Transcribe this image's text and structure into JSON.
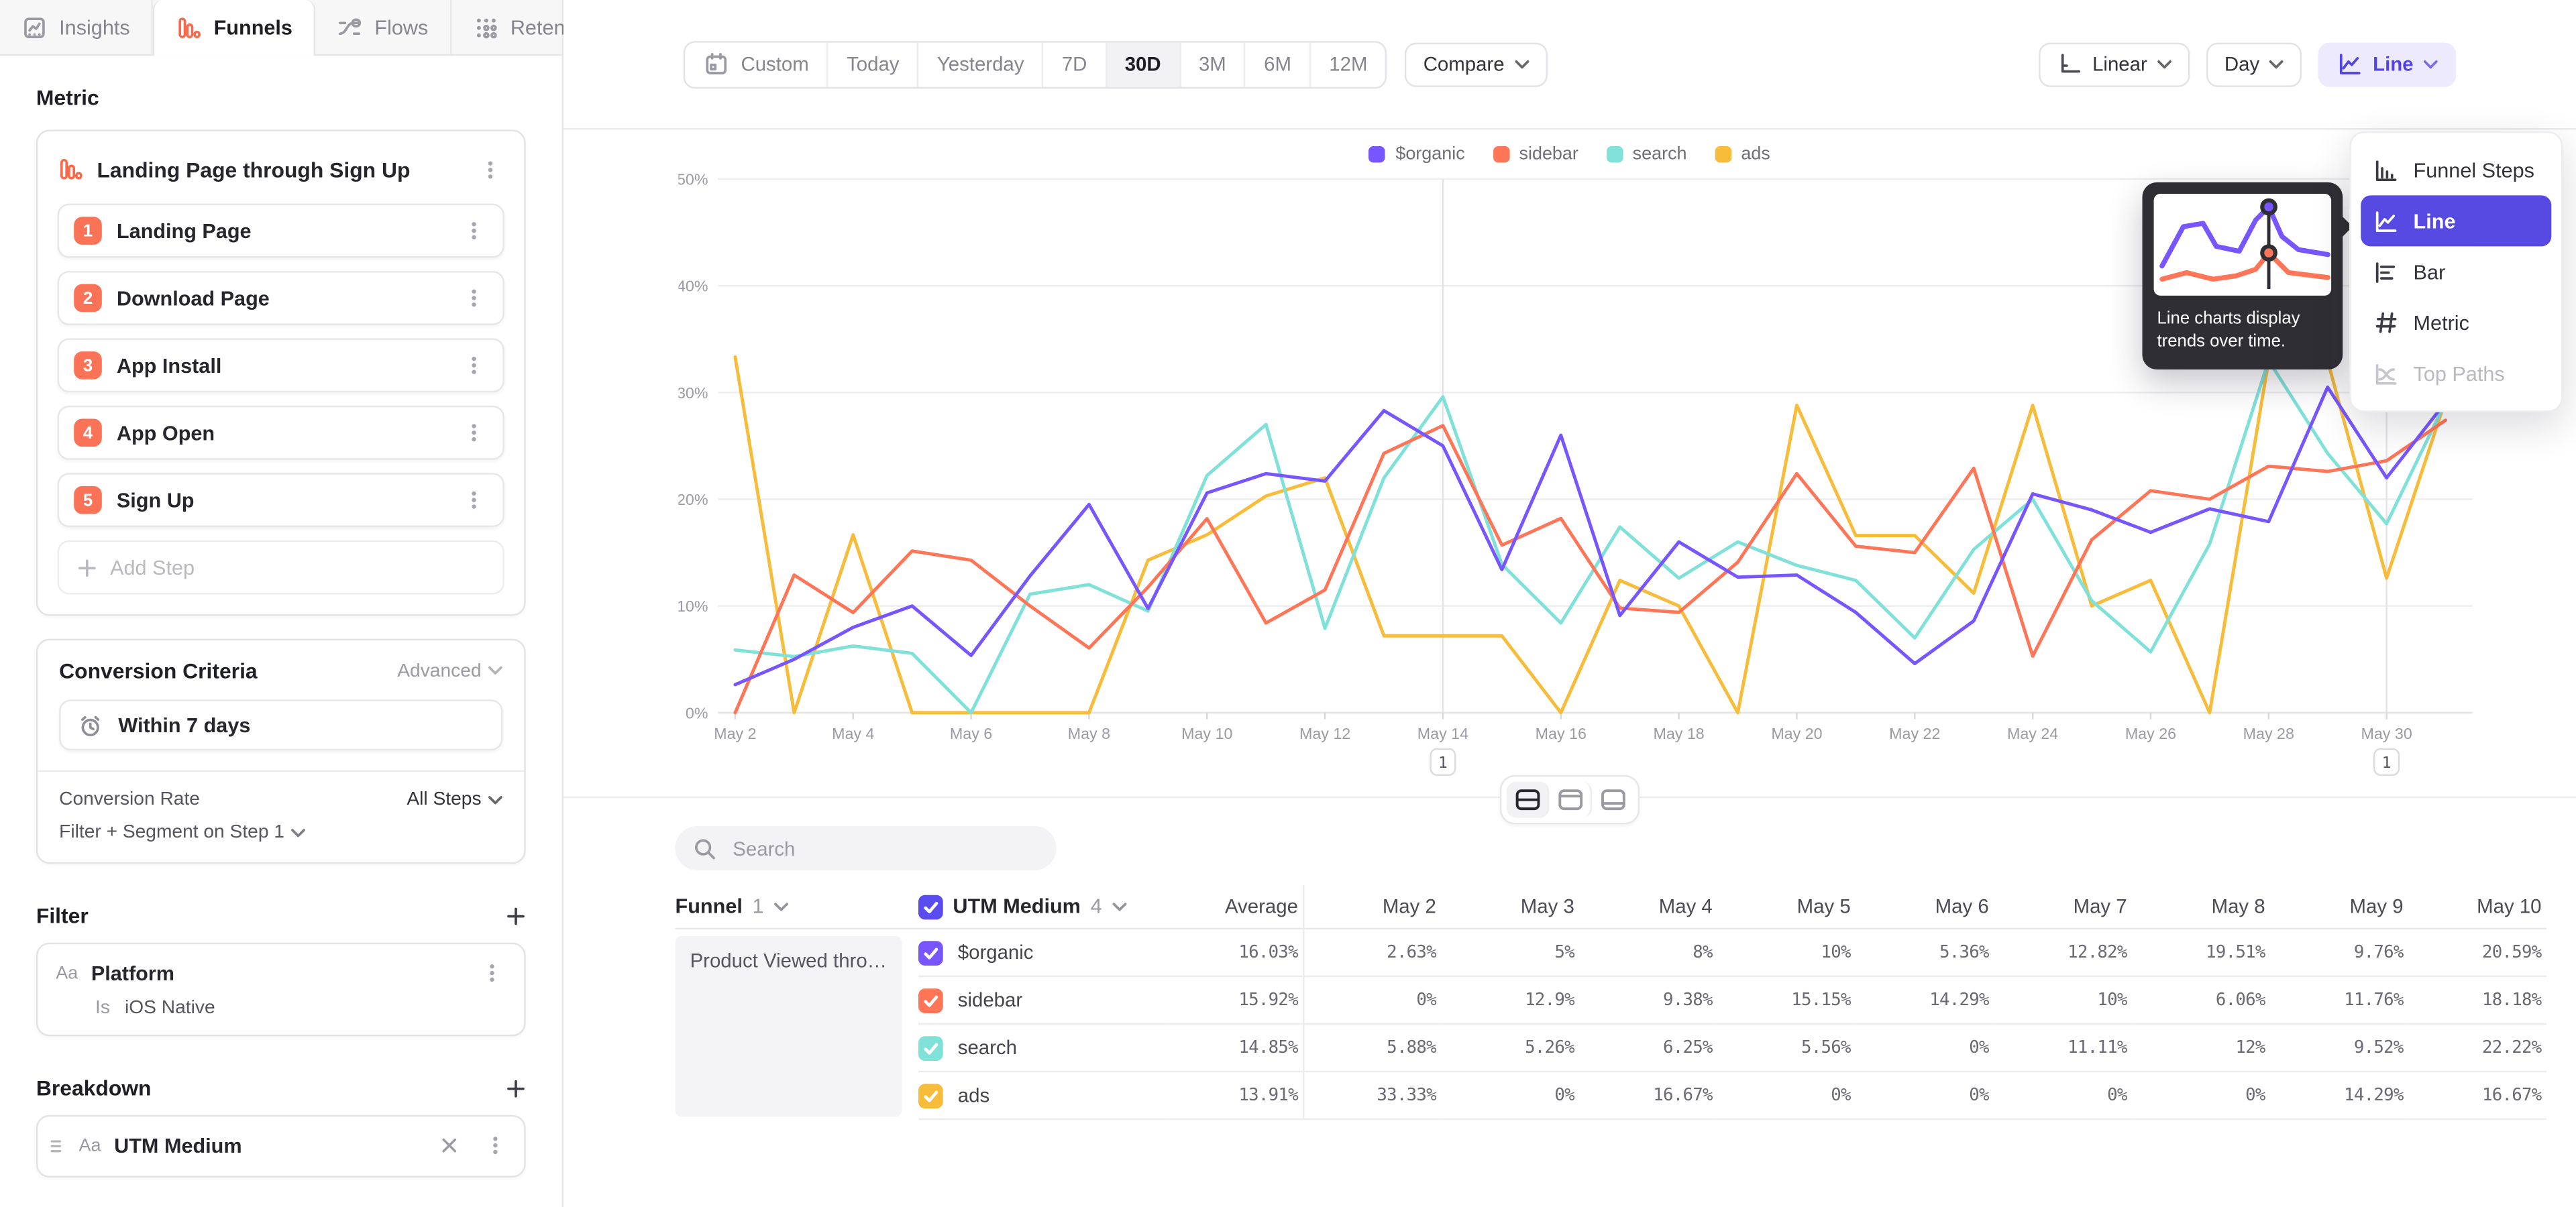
{
  "nav": {
    "tabs": [
      {
        "label": "Insights",
        "icon": "insights-icon",
        "active": false
      },
      {
        "label": "Funnels",
        "icon": "funnels-icon",
        "active": true
      },
      {
        "label": "Flows",
        "icon": "flows-icon",
        "active": false
      },
      {
        "label": "Retention",
        "icon": "retention-icon",
        "active": false
      }
    ]
  },
  "sidebar": {
    "metric_label": "Metric",
    "funnel_name": "Landing Page through Sign Up",
    "steps": [
      {
        "num": "1",
        "label": "Landing Page"
      },
      {
        "num": "2",
        "label": "Download Page"
      },
      {
        "num": "3",
        "label": "App Install"
      },
      {
        "num": "4",
        "label": "App Open"
      },
      {
        "num": "5",
        "label": "Sign Up"
      }
    ],
    "add_step_label": "Add Step",
    "conversion_criteria": {
      "title": "Conversion Criteria",
      "advanced": "Advanced",
      "window": "Within 7 days",
      "rate_label": "Conversion Rate",
      "rate_value": "All Steps",
      "segment": "Filter + Segment on Step 1"
    },
    "filter": {
      "title": "Filter",
      "badge": "Aa",
      "property": "Platform",
      "operator": "Is",
      "value": "iOS Native"
    },
    "breakdown": {
      "title": "Breakdown",
      "badge": "Aa",
      "property": "UTM Medium"
    }
  },
  "toolbar": {
    "ranges": [
      "Custom",
      "Today",
      "Yesterday",
      "7D",
      "30D",
      "3M",
      "6M",
      "12M"
    ],
    "active_range": "30D",
    "compare": "Compare",
    "scale": "Linear",
    "granularity": "Day",
    "chart_type": "Line"
  },
  "chart_menu": {
    "items": [
      {
        "label": "Funnel Steps",
        "icon": "funnel-steps-icon",
        "selected": false,
        "disabled": false
      },
      {
        "label": "Line",
        "icon": "line-chart-icon",
        "selected": true,
        "disabled": false
      },
      {
        "label": "Bar",
        "icon": "bar-chart-icon",
        "selected": false,
        "disabled": false
      },
      {
        "label": "Metric",
        "icon": "metric-icon",
        "selected": false,
        "disabled": false
      },
      {
        "label": "Top Paths",
        "icon": "top-paths-icon",
        "selected": false,
        "disabled": true
      }
    ]
  },
  "chart_tooltip": {
    "text": "Line charts display trends over time."
  },
  "chart_data": {
    "type": "line",
    "title": "",
    "ylabel": "",
    "ylim": [
      0,
      50
    ],
    "yticks": [
      "0%",
      "10%",
      "20%",
      "30%",
      "40%",
      "50%"
    ],
    "grid": true,
    "legend_position": "top",
    "x": [
      "May 2",
      "May 3",
      "May 4",
      "May 5",
      "May 6",
      "May 7",
      "May 8",
      "May 9",
      "May 10",
      "May 11",
      "May 12",
      "May 13",
      "May 14",
      "May 15",
      "May 16",
      "May 17",
      "May 18",
      "May 19",
      "May 20",
      "May 21",
      "May 22",
      "May 23",
      "May 24",
      "May 25",
      "May 26",
      "May 27",
      "May 28",
      "May 29",
      "May 30",
      "May 31"
    ],
    "x_tick_labels": [
      "May 2",
      "May 4",
      "May 6",
      "May 8",
      "May 10",
      "May 12",
      "May 14",
      "May 16",
      "May 18",
      "May 20",
      "May 22",
      "May 24",
      "May 26",
      "May 28",
      "May 30"
    ],
    "annotations": [
      {
        "x": "May 14",
        "label": "1"
      },
      {
        "x": "May 30",
        "label": "1"
      }
    ],
    "series": [
      {
        "name": "$organic",
        "color": "#7856FF",
        "values": [
          2.63,
          5,
          8,
          10,
          5.36,
          12.82,
          19.51,
          9.76,
          20.59,
          22.4,
          21.7,
          28.3,
          25,
          13.4,
          26,
          9.1,
          16,
          12.7,
          12.9,
          9.4,
          4.6,
          8.6,
          20.5,
          19,
          16.9,
          19.1,
          17.9,
          30.5,
          22,
          29.1
        ]
      },
      {
        "name": "sidebar",
        "color": "#FF7557",
        "values": [
          0,
          12.9,
          9.38,
          15.15,
          14.29,
          10,
          6.06,
          11.76,
          18.18,
          8.4,
          11.5,
          24.3,
          26.9,
          15.7,
          18.2,
          9.8,
          9.4,
          14.1,
          22.4,
          15.6,
          15,
          22.9,
          5.3,
          16.2,
          20.8,
          20,
          23.1,
          22.6,
          23.6,
          27.4
        ]
      },
      {
        "name": "search",
        "color": "#80E1D9",
        "values": [
          5.88,
          5.26,
          6.25,
          5.56,
          0,
          11.11,
          12,
          9.52,
          22.22,
          27,
          7.9,
          22,
          29.6,
          13.9,
          8.4,
          17.4,
          12.6,
          16,
          13.8,
          12.4,
          7,
          15.3,
          20,
          10.5,
          5.7,
          15.8,
          33,
          24.3,
          17.7,
          29.1
        ]
      },
      {
        "name": "ads",
        "color": "#F8BC3B",
        "values": [
          33.33,
          0,
          16.67,
          0,
          0,
          0,
          0,
          14.29,
          16.67,
          20.3,
          22,
          7.2,
          7.2,
          7.2,
          0,
          12.4,
          10,
          0,
          28.8,
          16.6,
          16.6,
          11.2,
          28.8,
          10,
          12.4,
          0,
          33,
          33,
          12.6,
          29.3
        ]
      }
    ]
  },
  "table": {
    "search_placeholder": "Search",
    "funnel_col": {
      "label": "Funnel",
      "count": "1"
    },
    "breakdown_col": {
      "label": "UTM Medium",
      "count": "4",
      "checkbox_color": "#5B4CF0"
    },
    "funnel_cell": "Product Viewed through P...",
    "columns": [
      "Average",
      "May 2",
      "May 3",
      "May 4",
      "May 5",
      "May 6",
      "May 7",
      "May 8",
      "May 9",
      "May 10"
    ],
    "rows": [
      {
        "name": "$organic",
        "color": "#7856FF",
        "values": [
          "16.03%",
          "2.63%",
          "5%",
          "8%",
          "10%",
          "5.36%",
          "12.82%",
          "19.51%",
          "9.76%",
          "20.59%"
        ]
      },
      {
        "name": "sidebar",
        "color": "#FF7557",
        "values": [
          "15.92%",
          "0%",
          "12.9%",
          "9.38%",
          "15.15%",
          "14.29%",
          "10%",
          "6.06%",
          "11.76%",
          "18.18%"
        ]
      },
      {
        "name": "search",
        "color": "#80E1D9",
        "values": [
          "14.85%",
          "5.88%",
          "5.26%",
          "6.25%",
          "5.56%",
          "0%",
          "11.11%",
          "12%",
          "9.52%",
          "22.22%"
        ]
      },
      {
        "name": "ads",
        "color": "#F8BC3B",
        "values": [
          "13.91%",
          "33.33%",
          "0%",
          "16.67%",
          "0%",
          "0%",
          "0%",
          "0%",
          "14.29%",
          "16.67%"
        ]
      }
    ]
  }
}
